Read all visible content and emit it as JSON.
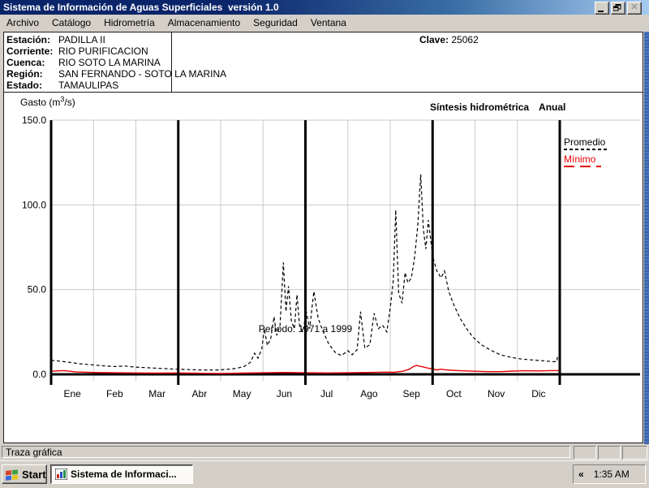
{
  "window": {
    "title": "Sistema de Información de Aguas Superficiales  versión 1.0"
  },
  "menu": {
    "items": [
      "Archivo",
      "Catálogo",
      "Hidrometría",
      "Almacenamiento",
      "Seguridad",
      "Ventana"
    ]
  },
  "station_info": {
    "rows": [
      {
        "label": "Estación:",
        "value": "PADILLA II"
      },
      {
        "label": "Corriente:",
        "value": "RIO PURIFICACION"
      },
      {
        "label": "Cuenca:",
        "value": "RIO SOTO LA MARINA"
      },
      {
        "label": "Región:",
        "value": "SAN FERNANDO - SOTO LA MARINA"
      },
      {
        "label": "Estado:",
        "value": "TAMAULIPAS"
      }
    ],
    "clave_label": "Clave:",
    "clave_value": "25062"
  },
  "chart_header": {
    "y_title_prefix": "Gasto (m",
    "y_title_sup": "3",
    "y_title_suffix": "/s)",
    "subtitle": "Síntesis hidrométrica",
    "mode": "Anual"
  },
  "chart_data": {
    "type": "line",
    "title": "Síntesis hidrométrica Anual",
    "ylabel": "Gasto (m3/s)",
    "xlabel_note": "Período: 1971 a 1999",
    "months": [
      "Ene",
      "Feb",
      "Mar",
      "Abr",
      "May",
      "Jun",
      "Jul",
      "Ago",
      "Sep",
      "Oct",
      "Nov",
      "Dic"
    ],
    "yticks": [
      0,
      50,
      100,
      150
    ],
    "ylim": [
      0,
      150
    ],
    "xlim_months": [
      0,
      12
    ],
    "grid": true,
    "quarter_lines_months": [
      0,
      3,
      6,
      9,
      12
    ],
    "legend_position": "outside-top-right",
    "series": [
      {
        "name": "Promedio",
        "color": "#000000",
        "style": "dashed",
        "points": [
          [
            0,
            8.2
          ],
          [
            0.2,
            7.8
          ],
          [
            0.45,
            7
          ],
          [
            0.7,
            6.2
          ],
          [
            1,
            5.5
          ],
          [
            1.25,
            5
          ],
          [
            1.5,
            4.6
          ],
          [
            1.75,
            4.9
          ],
          [
            1.95,
            4.3
          ],
          [
            2.2,
            4
          ],
          [
            2.5,
            3.6
          ],
          [
            2.8,
            3.2
          ],
          [
            3.1,
            2.9
          ],
          [
            3.4,
            2.7
          ],
          [
            3.7,
            2.5
          ],
          [
            3.95,
            2.6
          ],
          [
            4.15,
            2.9
          ],
          [
            4.35,
            3.4
          ],
          [
            4.55,
            4.6
          ],
          [
            4.7,
            7
          ],
          [
            4.8,
            12.5
          ],
          [
            4.88,
            9.5
          ],
          [
            4.97,
            15
          ],
          [
            5.03,
            27
          ],
          [
            5.1,
            17
          ],
          [
            5.18,
            21
          ],
          [
            5.26,
            34
          ],
          [
            5.32,
            23
          ],
          [
            5.4,
            29
          ],
          [
            5.48,
            66
          ],
          [
            5.54,
            37
          ],
          [
            5.6,
            52
          ],
          [
            5.67,
            31
          ],
          [
            5.74,
            27
          ],
          [
            5.8,
            47
          ],
          [
            5.86,
            29
          ],
          [
            5.94,
            25
          ],
          [
            6.02,
            37
          ],
          [
            6.1,
            27
          ],
          [
            6.2,
            49
          ],
          [
            6.3,
            33
          ],
          [
            6.42,
            25
          ],
          [
            6.55,
            18
          ],
          [
            6.7,
            13
          ],
          [
            6.85,
            11
          ],
          [
            7,
            14
          ],
          [
            7.1,
            11.5
          ],
          [
            7.22,
            14.5
          ],
          [
            7.3,
            37
          ],
          [
            7.4,
            15.5
          ],
          [
            7.52,
            17.5
          ],
          [
            7.62,
            36
          ],
          [
            7.72,
            27
          ],
          [
            7.82,
            29
          ],
          [
            7.92,
            25
          ],
          [
            8,
            39
          ],
          [
            8.07,
            55
          ],
          [
            8.13,
            97
          ],
          [
            8.2,
            48
          ],
          [
            8.28,
            42
          ],
          [
            8.35,
            60
          ],
          [
            8.42,
            54
          ],
          [
            8.5,
            57
          ],
          [
            8.58,
            70
          ],
          [
            8.65,
            88
          ],
          [
            8.72,
            118
          ],
          [
            8.78,
            86
          ],
          [
            8.84,
            74
          ],
          [
            8.9,
            91
          ],
          [
            8.96,
            78
          ],
          [
            9.02,
            68
          ],
          [
            9.1,
            61
          ],
          [
            9.2,
            57
          ],
          [
            9.28,
            61
          ],
          [
            9.38,
            49
          ],
          [
            9.5,
            41
          ],
          [
            9.65,
            33
          ],
          [
            9.8,
            27
          ],
          [
            9.95,
            22
          ],
          [
            10.15,
            17.5
          ],
          [
            10.35,
            14.5
          ],
          [
            10.6,
            11.5
          ],
          [
            10.85,
            10
          ],
          [
            11.1,
            9
          ],
          [
            11.35,
            8.5
          ],
          [
            11.6,
            8
          ],
          [
            11.85,
            7.5
          ],
          [
            11.93,
            7.5
          ],
          [
            11.95,
            11
          ],
          [
            12,
            11
          ]
        ]
      },
      {
        "name": "Mínimo",
        "color": "#e60000",
        "style": "solid",
        "points": [
          [
            0,
            1.8
          ],
          [
            0.3,
            2.2
          ],
          [
            0.6,
            1.4
          ],
          [
            1,
            1.1
          ],
          [
            1.5,
            0.9
          ],
          [
            2,
            0.8
          ],
          [
            2.5,
            0.7
          ],
          [
            3,
            0.8
          ],
          [
            3.5,
            0.6
          ],
          [
            4,
            0.5
          ],
          [
            4.5,
            0.7
          ],
          [
            5,
            0.9
          ],
          [
            5.5,
            1.1
          ],
          [
            6,
            0.9
          ],
          [
            6.5,
            0.8
          ],
          [
            7,
            0.9
          ],
          [
            7.5,
            1.1
          ],
          [
            7.9,
            1.3
          ],
          [
            8.1,
            1.2
          ],
          [
            8.3,
            1.8
          ],
          [
            8.45,
            3
          ],
          [
            8.55,
            4.6
          ],
          [
            8.62,
            5.2
          ],
          [
            8.7,
            4.8
          ],
          [
            8.8,
            4.2
          ],
          [
            8.9,
            3.6
          ],
          [
            9,
            3.2
          ],
          [
            9.1,
            2.6
          ],
          [
            9.2,
            3
          ],
          [
            9.3,
            2.7
          ],
          [
            9.45,
            2.4
          ],
          [
            9.6,
            2.2
          ],
          [
            9.8,
            2
          ],
          [
            10,
            1.8
          ],
          [
            10.3,
            1.6
          ],
          [
            10.6,
            1.6
          ],
          [
            10.9,
            1.9
          ],
          [
            11.2,
            2.1
          ],
          [
            11.5,
            2
          ],
          [
            11.8,
            2.2
          ],
          [
            12,
            2.2
          ]
        ]
      }
    ]
  },
  "statusbar": {
    "text": "Traza gráfica"
  },
  "taskbar": {
    "start_label": "Start",
    "task_label": "Sistema de Informaci...",
    "tray_chevron": "«",
    "tray_time": "1:35 AM"
  }
}
